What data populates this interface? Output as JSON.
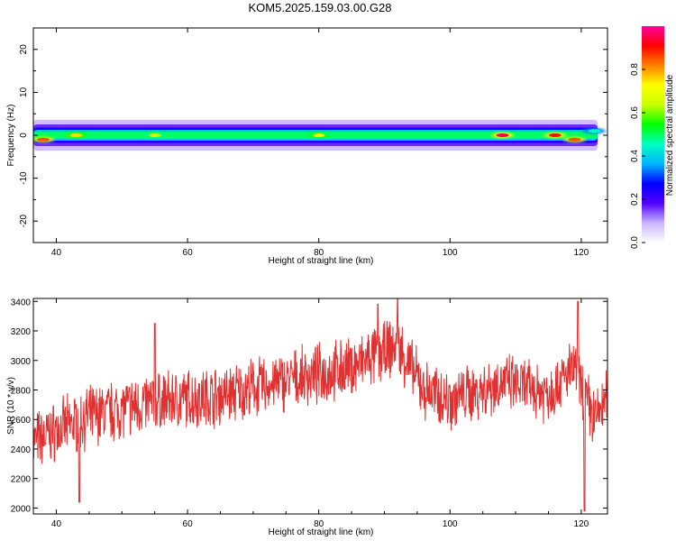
{
  "title": "KOM5.2025.159.03.00.G28",
  "chart_data": [
    {
      "type": "heatmap",
      "xlabel": "Height of straight line (km)",
      "ylabel": "Frequency (Hz)",
      "xlim": [
        36.5,
        124
      ],
      "ylim": [
        -25,
        25
      ],
      "xticks": [
        "40",
        "60",
        "80",
        "100",
        "120"
      ],
      "yticks": [
        "-20",
        "-10",
        "0",
        "10",
        "20"
      ],
      "colorbar": {
        "label": "Normalized spectral amplitude",
        "range": [
          0,
          1
        ],
        "ticks": [
          "0.0",
          "0.2",
          "0.4",
          "0.6",
          "0.8"
        ],
        "colors": [
          "#ffffff",
          "#c8b4ff",
          "#5000ff",
          "#0000ff",
          "#00b4ff",
          "#00ffc0",
          "#00ff00",
          "#c8ff00",
          "#ffff00",
          "#ff8000",
          "#ff0000",
          "#ff00a0"
        ]
      },
      "band": {
        "center_hz": 0,
        "half_width_hz": 1.8,
        "hotspots": [
          {
            "x": 38,
            "f": -1,
            "amp": 0.85
          },
          {
            "x": 43,
            "f": 0,
            "amp": 0.75
          },
          {
            "x": 55,
            "f": 0,
            "amp": 0.65
          },
          {
            "x": 80,
            "f": 0,
            "amp": 0.7
          },
          {
            "x": 108,
            "f": 0,
            "amp": 0.95
          },
          {
            "x": 116,
            "f": 0,
            "amp": 0.9
          },
          {
            "x": 119,
            "f": -1,
            "amp": 0.85
          },
          {
            "x": 122,
            "f": 1,
            "amp": 0.45
          }
        ]
      }
    },
    {
      "type": "line",
      "xlabel": "Height of straight line (km)",
      "ylabel": "SNR (10 * v/v)",
      "xlim": [
        36.5,
        124
      ],
      "ylim": [
        1960,
        3420
      ],
      "xticks": [
        "40",
        "60",
        "80",
        "100",
        "120"
      ],
      "yticks": [
        "2000",
        "2200",
        "2400",
        "2600",
        "2800",
        "3000",
        "3200",
        "3400"
      ],
      "line_color": "#e03030",
      "trend": [
        {
          "x": 36.5,
          "y": 2450
        },
        {
          "x": 45,
          "y": 2620
        },
        {
          "x": 55,
          "y": 2720
        },
        {
          "x": 65,
          "y": 2760
        },
        {
          "x": 75,
          "y": 2860
        },
        {
          "x": 85,
          "y": 2950
        },
        {
          "x": 92,
          "y": 3100
        },
        {
          "x": 96,
          "y": 2800
        },
        {
          "x": 100,
          "y": 2730
        },
        {
          "x": 108,
          "y": 2850
        },
        {
          "x": 115,
          "y": 2780
        },
        {
          "x": 119,
          "y": 2950
        },
        {
          "x": 122,
          "y": 2600
        },
        {
          "x": 124,
          "y": 2750
        }
      ],
      "extremes": [
        {
          "x": 92,
          "y": 3420
        },
        {
          "x": 119.5,
          "y": 3400
        },
        {
          "x": 43.5,
          "y": 2040
        },
        {
          "x": 120.5,
          "y": 1980
        },
        {
          "x": 55,
          "y": 3250
        },
        {
          "x": 89,
          "y": 3380
        }
      ]
    }
  ]
}
